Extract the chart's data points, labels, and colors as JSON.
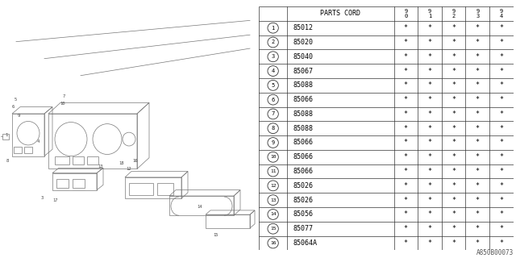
{
  "part_code_label": "PARTS CORD",
  "year_cols": [
    "9\n0",
    "9\n1",
    "9\n2",
    "9\n3",
    "9\n4"
  ],
  "rows": [
    {
      "num": 1,
      "code": "85012"
    },
    {
      "num": 2,
      "code": "85020"
    },
    {
      "num": 3,
      "code": "85040"
    },
    {
      "num": 4,
      "code": "85067"
    },
    {
      "num": 5,
      "code": "85088"
    },
    {
      "num": 6,
      "code": "85066"
    },
    {
      "num": 7,
      "code": "85088"
    },
    {
      "num": 8,
      "code": "85088"
    },
    {
      "num": 9,
      "code": "85066"
    },
    {
      "num": 10,
      "code": "85066"
    },
    {
      "num": 11,
      "code": "85066"
    },
    {
      "num": 12,
      "code": "85026"
    },
    {
      "num": 13,
      "code": "85026"
    },
    {
      "num": 14,
      "code": "85056"
    },
    {
      "num": 15,
      "code": "85077"
    },
    {
      "num": 16,
      "code": "85064A"
    }
  ],
  "star": "*",
  "footer": "A850B00073",
  "bg_color": "#ffffff",
  "line_color": "#555555",
  "text_color": "#000000",
  "font_size": 6.0
}
